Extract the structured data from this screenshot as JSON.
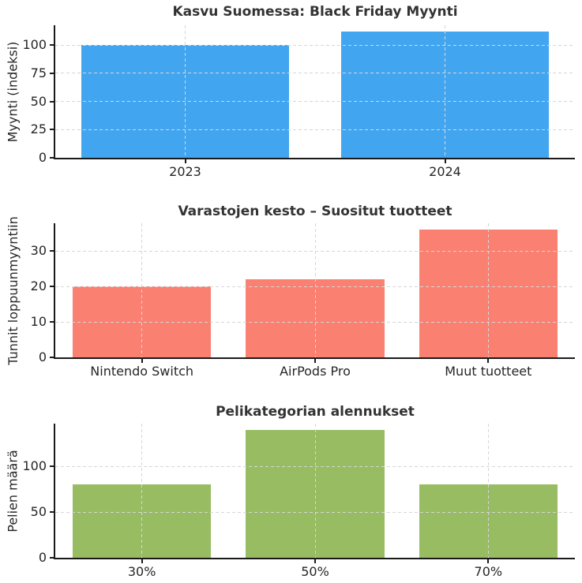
{
  "style": {
    "background": "#ffffff",
    "axis_color": "#1a1a1a",
    "grid_color": "#d6d6d6",
    "tick_text_color": "#262626",
    "title_color": "#333333"
  },
  "chart_data": [
    {
      "type": "bar",
      "title": "Kasvu Suomessa: Black Friday Myynti",
      "ylabel": "Myynti (indeksi)",
      "xlabel": "",
      "categories": [
        "2023",
        "2024"
      ],
      "values": [
        100,
        112
      ],
      "yticks": [
        0,
        25,
        50,
        75,
        100
      ],
      "ylim": [
        0,
        117.6
      ],
      "bar_color": "#42A5F0",
      "grid": "dashed, drawn over bars, horizontal and vertical",
      "legend": false
    },
    {
      "type": "bar",
      "title": "Varastojen kesto – Suositut tuotteet",
      "ylabel": "Tunnit loppuunmyyntiin",
      "xlabel": "",
      "categories": [
        "Nintendo Switch",
        "AirPods Pro",
        "Muut tuotteet"
      ],
      "values": [
        20,
        22,
        36
      ],
      "yticks": [
        0,
        10,
        20,
        30
      ],
      "ylim": [
        0,
        37.8
      ],
      "bar_color": "#FA8072",
      "grid": "dashed, drawn over bars, horizontal and vertical",
      "legend": false
    },
    {
      "type": "bar",
      "title": "Pelikategorian alennukset",
      "ylabel": "Pelien määrä",
      "xlabel": "",
      "categories": [
        "30%",
        "50%",
        "70%"
      ],
      "values": [
        80,
        140,
        80
      ],
      "yticks": [
        0,
        50,
        100
      ],
      "ylim": [
        0,
        147
      ],
      "bar_color": "#97BC62",
      "grid": "dashed, drawn over bars, horizontal and vertical",
      "legend": false
    }
  ]
}
